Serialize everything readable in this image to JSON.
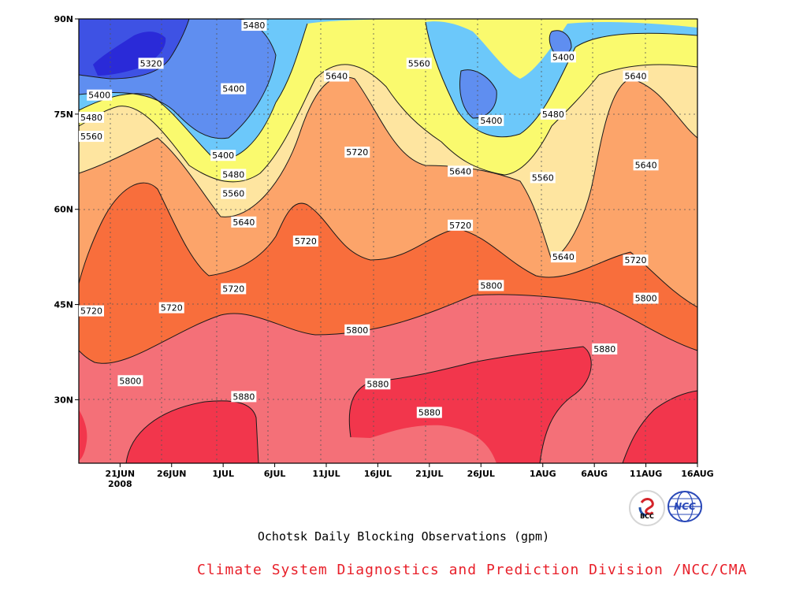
{
  "chart_data": {
    "type": "heatmap",
    "title": "",
    "subtitle": "Ochotsk Daily Blocking Observations (gpm)",
    "credit": "Climate System Diagnostics and Prediction Division /NCC/CMA",
    "xlabel": "",
    "ylabel": "",
    "x_ticks": [
      "21JUN",
      "26JUN",
      "1JUL",
      "6JUL",
      "11JUL",
      "16JUL",
      "21JUL",
      "26JUL",
      "1AUG",
      "6AUG",
      "11AUG",
      "16AUG"
    ],
    "x_year_label": "2008",
    "y_ticks": [
      "90N",
      "75N",
      "60N",
      "45N",
      "30N"
    ],
    "contour_levels": [
      5320,
      5400,
      5480,
      5560,
      5640,
      5720,
      5800,
      5880
    ],
    "level_colors": {
      "below_5320": "#2a2ad8",
      "5320": "#3e52e4",
      "5400": "#5f8ef0",
      "5480": "#6cc8fa",
      "5560": "#fafa6e",
      "5640": "#fee5a0",
      "5720": "#fca46a",
      "5800": "#f86e3c",
      "5880": "#f47078",
      "above_5880": "#f2364c"
    },
    "contour_labels": [
      {
        "text": "5480",
        "date": "Jul 4",
        "lat": 89
      },
      {
        "text": "5320",
        "date": "Jun 24",
        "lat": 83
      },
      {
        "text": "5400",
        "date": "Jun 19",
        "lat": 78
      },
      {
        "text": "5480",
        "date": "Jun 18",
        "lat": 74.5
      },
      {
        "text": "5560",
        "date": "Jun 18",
        "lat": 71.5
      },
      {
        "text": "5400",
        "date": "Jul 2",
        "lat": 79
      },
      {
        "text": "5400",
        "date": "Jul 1",
        "lat": 68.5
      },
      {
        "text": "5480",
        "date": "Jul 2",
        "lat": 65.5
      },
      {
        "text": "5560",
        "date": "Jul 2",
        "lat": 62.5
      },
      {
        "text": "5640",
        "date": "Jul 3",
        "lat": 58
      },
      {
        "text": "5640",
        "date": "Jul 12",
        "lat": 81
      },
      {
        "text": "5560",
        "date": "Jul 20",
        "lat": 83
      },
      {
        "text": "5720",
        "date": "Jul 14",
        "lat": 69
      },
      {
        "text": "5720",
        "date": "Jul 9",
        "lat": 55
      },
      {
        "text": "5640",
        "date": "Jul 24",
        "lat": 66
      },
      {
        "text": "5720",
        "date": "Jul 24",
        "lat": 57.5
      },
      {
        "text": "5400",
        "date": "Jul 27",
        "lat": 74
      },
      {
        "text": "5560",
        "date": "Aug 1",
        "lat": 65
      },
      {
        "text": "5400",
        "date": "Aug 3",
        "lat": 84
      },
      {
        "text": "5480",
        "date": "Aug 2",
        "lat": 75
      },
      {
        "text": "5640",
        "date": "Aug 10",
        "lat": 81
      },
      {
        "text": "5640",
        "date": "Aug 11",
        "lat": 67
      },
      {
        "text": "5640",
        "date": "Aug 3",
        "lat": 52.5
      },
      {
        "text": "5720",
        "date": "Aug 10",
        "lat": 52
      },
      {
        "text": "5800",
        "date": "Jul 27",
        "lat": 48
      },
      {
        "text": "5800",
        "date": "Aug 11",
        "lat": 46
      },
      {
        "text": "5720",
        "date": "Jun 18",
        "lat": 44
      },
      {
        "text": "5720",
        "date": "Jun 26",
        "lat": 44.5
      },
      {
        "text": "5720",
        "date": "Jul 2",
        "lat": 47.5
      },
      {
        "text": "5800",
        "date": "Jul 14",
        "lat": 41
      },
      {
        "text": "5880",
        "date": "Aug 7",
        "lat": 38
      },
      {
        "text": "5800",
        "date": "Jun 22",
        "lat": 33
      },
      {
        "text": "5880",
        "date": "Jul 3",
        "lat": 30.5
      },
      {
        "text": "5880",
        "date": "Jul 16",
        "lat": 32.5
      },
      {
        "text": "5880",
        "date": "Jul 21",
        "lat": 28
      }
    ],
    "logos": {
      "bcc_text": "BCC",
      "ncc_text": "NCC"
    }
  }
}
